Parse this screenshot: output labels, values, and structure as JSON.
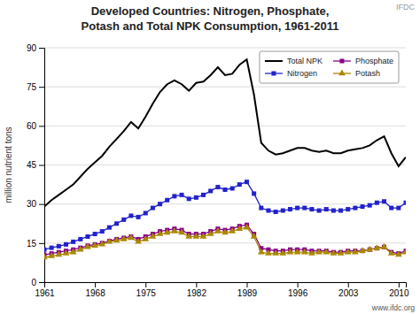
{
  "chart_data": {
    "type": "line",
    "title": "Developed Countries: Nitrogen, Phosphate,",
    "subtitle": "Potash and Total NPK Consumption, 1961-2011",
    "ylabel": "million nutrient tons",
    "annotations": [
      "IFDC",
      "www.ifdc.org"
    ],
    "x": [
      1961,
      1962,
      1963,
      1964,
      1965,
      1966,
      1967,
      1968,
      1969,
      1970,
      1971,
      1972,
      1973,
      1974,
      1975,
      1976,
      1977,
      1978,
      1979,
      1980,
      1981,
      1982,
      1983,
      1984,
      1985,
      1986,
      1987,
      1988,
      1989,
      1990,
      1991,
      1992,
      1993,
      1994,
      1995,
      1996,
      1997,
      1998,
      1999,
      2000,
      2001,
      2002,
      2003,
      2004,
      2005,
      2006,
      2007,
      2008,
      2009,
      2010,
      2011
    ],
    "series": [
      {
        "name": "Total NPK",
        "color": "#000000",
        "values": [
          29.0,
          31.5,
          33.5,
          35.5,
          37.5,
          40.5,
          43.5,
          46.0,
          48.5,
          52.0,
          55.0,
          58.0,
          61.5,
          59.0,
          63.5,
          68.5,
          73.0,
          76.0,
          77.5,
          76.0,
          73.5,
          76.5,
          77.0,
          79.5,
          82.5,
          79.5,
          80.0,
          83.5,
          85.5,
          72.0,
          53.5,
          50.5,
          49.0,
          49.5,
          50.5,
          51.5,
          51.5,
          50.5,
          50.0,
          50.5,
          49.5,
          49.5,
          50.5,
          51.0,
          51.5,
          52.5,
          54.5,
          56.0,
          49.5,
          44.5,
          48.0
        ]
      },
      {
        "name": "Nitrogen",
        "color": "#2222cc",
        "marker": "square",
        "values": [
          12.5,
          13.2,
          13.8,
          14.5,
          15.5,
          16.5,
          17.5,
          18.5,
          19.5,
          21.0,
          22.5,
          24.0,
          25.5,
          25.0,
          26.5,
          28.5,
          30.0,
          31.5,
          33.0,
          33.5,
          32.0,
          32.5,
          33.5,
          35.0,
          36.5,
          35.5,
          36.0,
          37.5,
          38.5,
          34.0,
          28.5,
          27.5,
          27.0,
          27.5,
          28.0,
          28.5,
          28.5,
          28.0,
          27.5,
          28.0,
          27.5,
          27.5,
          28.0,
          28.5,
          29.0,
          29.5,
          30.5,
          31.0,
          28.5,
          28.5,
          30.5
        ]
      },
      {
        "name": "Phosphate",
        "color": "#880088",
        "marker": "square",
        "values": [
          10.5,
          11.0,
          11.5,
          12.0,
          12.5,
          13.2,
          14.0,
          14.5,
          15.0,
          15.8,
          16.5,
          17.0,
          17.5,
          16.5,
          17.5,
          18.5,
          19.5,
          20.0,
          20.5,
          20.0,
          18.5,
          18.5,
          18.5,
          19.5,
          20.5,
          20.0,
          20.5,
          21.5,
          22.0,
          18.5,
          13.0,
          12.5,
          12.0,
          12.0,
          12.5,
          12.5,
          12.5,
          12.0,
          12.0,
          12.0,
          11.5,
          11.5,
          12.0,
          12.0,
          12.0,
          12.5,
          13.0,
          13.5,
          11.5,
          11.0,
          12.0
        ]
      },
      {
        "name": "Potash",
        "color": "#aa8800",
        "marker": "triangle",
        "values": [
          9.5,
          10.0,
          10.5,
          11.0,
          11.5,
          12.5,
          13.5,
          14.0,
          14.5,
          15.5,
          16.0,
          16.5,
          17.0,
          15.5,
          16.5,
          17.5,
          18.5,
          19.0,
          19.5,
          19.0,
          17.5,
          17.5,
          17.5,
          18.5,
          19.5,
          19.0,
          19.5,
          20.5,
          21.0,
          17.5,
          11.5,
          11.0,
          11.0,
          11.0,
          11.5,
          11.5,
          11.5,
          11.0,
          11.5,
          11.5,
          11.0,
          11.0,
          11.5,
          11.5,
          12.0,
          12.5,
          13.0,
          13.5,
          11.0,
          10.5,
          11.5
        ]
      }
    ],
    "xlim": [
      1961,
      2011
    ],
    "xticks": [
      1961,
      1968,
      1975,
      1982,
      1989,
      1996,
      2003,
      2010
    ],
    "ylim": [
      0,
      90
    ],
    "yticks": [
      0,
      15,
      30,
      45,
      60,
      75,
      90
    ],
    "grid": true,
    "legend": "upper right"
  }
}
